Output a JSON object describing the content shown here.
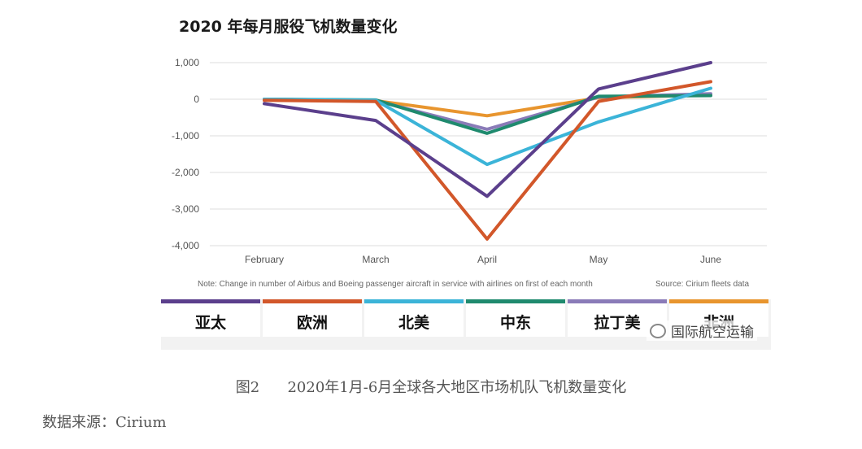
{
  "chart_data": {
    "type": "line",
    "title": "2020 年每月服役飞机数量变化",
    "categories": [
      "February",
      "March",
      "April",
      "May",
      "June"
    ],
    "y_ticks": [
      "1,000",
      "0",
      "-1,000",
      "-2,000",
      "-3,000",
      "-4,000"
    ],
    "ylim": [
      -4000,
      1000
    ],
    "grid": true,
    "legend_position": "bottom",
    "note": "Note: Change in number of Airbus and Boeing passenger aircraft in service with airlines on first of each month",
    "source_note": "Source: Cirium fleets data",
    "series": [
      {
        "name": "亚太",
        "color": "#5b3f8c",
        "values": [
          -120,
          -580,
          -2650,
          280,
          1000
        ]
      },
      {
        "name": "欧洲",
        "color": "#d2572a",
        "values": [
          -30,
          -60,
          -3820,
          -60,
          480
        ]
      },
      {
        "name": "北美",
        "color": "#3bb4d8",
        "values": [
          0,
          -30,
          -1780,
          -620,
          300
        ]
      },
      {
        "name": "中东",
        "color": "#1f8a6e",
        "values": [
          0,
          -20,
          -930,
          80,
          100
        ]
      },
      {
        "name": "拉丁美",
        "color": "#8a7bb8",
        "values": [
          0,
          -40,
          -820,
          60,
          150
        ]
      },
      {
        "name": "非洲",
        "color": "#e8952e",
        "values": [
          0,
          -40,
          -450,
          40,
          120
        ]
      }
    ]
  },
  "watermark": "国际航空运输",
  "caption": "图2      2020年1月-6月全球各大地区市场机队飞机数量变化",
  "source": "数据来源：Cirium"
}
